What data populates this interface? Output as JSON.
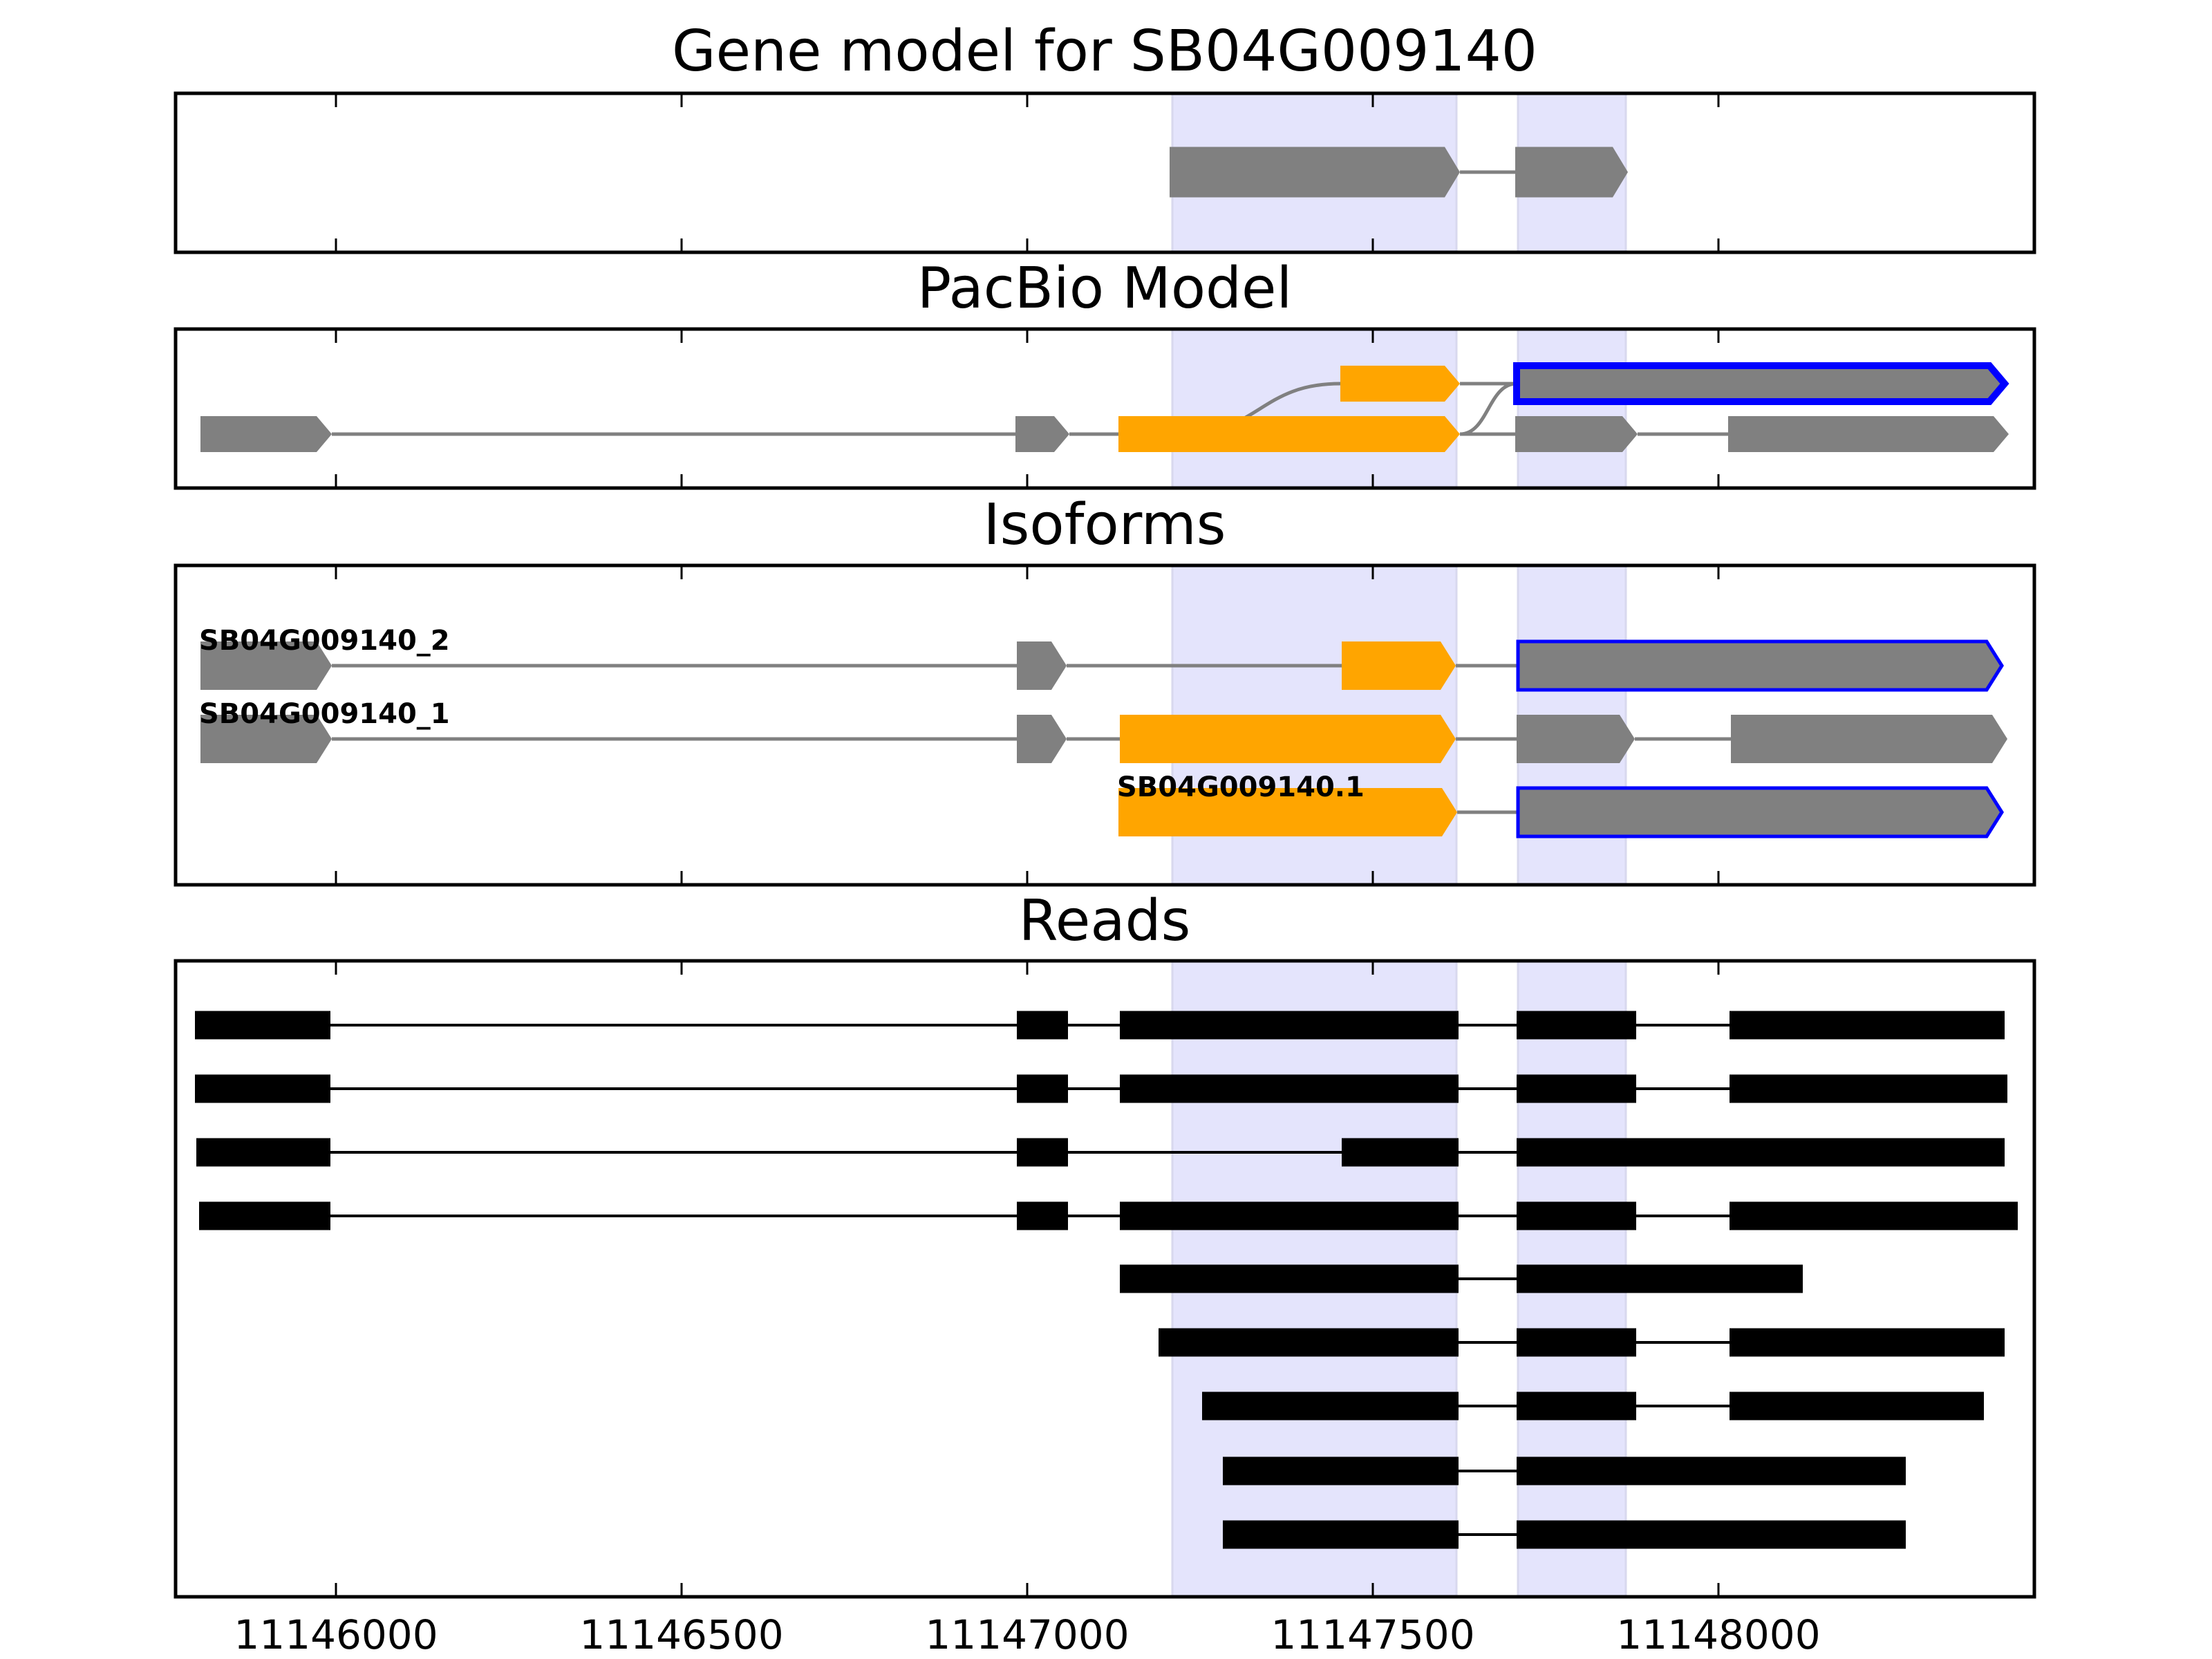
{
  "xlim": [
    11145768,
    11148457
  ],
  "ticks": [
    11146000,
    11146500,
    11147000,
    11147500,
    11148000
  ],
  "tick_labels": [
    "11146000",
    "11146500",
    "11147000",
    "11147500",
    "11148000"
  ],
  "highlight_regions": [
    [
      11147210,
      11147621
    ],
    [
      11147710,
      11147866
    ]
  ],
  "colors": {
    "highlight": "#e4e4fc",
    "exon": "#808080",
    "utr_alt": "#ffa500",
    "outline": "#0000ff",
    "read": "#000000",
    "intron": "#808080"
  },
  "panels": [
    {
      "title": "Gene model for SB04G009140",
      "rows": [
        {
          "exons": [
            [
              11147206,
              11147626,
              "gray"
            ],
            [
              11147706,
              11147869,
              "gray"
            ]
          ]
        }
      ]
    },
    {
      "title": "PacBio Model",
      "rows": [
        {
          "exons": [
            [
              11147453,
              11147626,
              "orange"
            ],
            [
              11147708,
              11148414,
              "outlined"
            ]
          ]
        },
        {
          "exons": [
            [
              11145804,
              11145994,
              "gray"
            ],
            [
              11146983,
              11147061,
              "gray"
            ],
            [
              11147132,
              11147626,
              "orange"
            ],
            [
              11147706,
              11147883,
              "gray"
            ],
            [
              11148014,
              11148420,
              "gray"
            ]
          ]
        }
      ],
      "links": [
        [
          1,
          11147220,
          0,
          11147453
        ],
        [
          1,
          11147626,
          0,
          11147708
        ]
      ]
    },
    {
      "title": "Isoforms",
      "rows": [
        {
          "label": "SB04G009140_2",
          "exons": [
            [
              11145804,
              11145994,
              "gray"
            ],
            [
              11146985,
              11147057,
              "gray"
            ],
            [
              11147455,
              11147620,
              "orange"
            ],
            [
              11147710,
              11148410,
              "outlined"
            ]
          ]
        },
        {
          "label": "SB04G009140_1",
          "exons": [
            [
              11145804,
              11145994,
              "gray"
            ],
            [
              11146985,
              11147057,
              "gray"
            ],
            [
              11147134,
              11147620,
              "orange"
            ],
            [
              11147708,
              11147879,
              "gray"
            ],
            [
              11148018,
              11148418,
              "gray"
            ]
          ]
        },
        {
          "label": "SB04G009140.1",
          "exons": [
            [
              11147132,
              11147622,
              "orange"
            ],
            [
              11147710,
              11148410,
              "outlined"
            ]
          ]
        }
      ]
    },
    {
      "title": "Reads",
      "rows": [
        {
          "exons": [
            [
              11145796,
              11145992
            ],
            [
              11146985,
              11147059
            ],
            [
              11147134,
              11147624
            ],
            [
              11147708,
              11147881
            ],
            [
              11148016,
              11148414
            ]
          ]
        },
        {
          "exons": [
            [
              11145796,
              11145992
            ],
            [
              11146985,
              11147059
            ],
            [
              11147134,
              11147624
            ],
            [
              11147708,
              11147881
            ],
            [
              11148016,
              11148418
            ]
          ]
        },
        {
          "exons": [
            [
              11145798,
              11145992
            ],
            [
              11146985,
              11147059
            ],
            [
              11147455,
              11147624
            ],
            [
              11147708,
              11148414
            ]
          ]
        },
        {
          "exons": [
            [
              11145802,
              11145992
            ],
            [
              11146985,
              11147059
            ],
            [
              11147134,
              11147624
            ],
            [
              11147708,
              11147881
            ],
            [
              11148016,
              11148433
            ]
          ]
        },
        {
          "exons": [
            [
              11147134,
              11147624
            ],
            [
              11147708,
              11148122
            ]
          ]
        },
        {
          "exons": [
            [
              11147190,
              11147624
            ],
            [
              11147708,
              11147881
            ],
            [
              11148016,
              11148414
            ]
          ]
        },
        {
          "exons": [
            [
              11147253,
              11147624
            ],
            [
              11147708,
              11147881
            ],
            [
              11148016,
              11148384
            ]
          ]
        },
        {
          "exons": [
            [
              11147283,
              11147624
            ],
            [
              11147708,
              11148271
            ]
          ]
        },
        {
          "exons": [
            [
              11147283,
              11147624
            ],
            [
              11147708,
              11148271
            ]
          ]
        }
      ]
    }
  ]
}
